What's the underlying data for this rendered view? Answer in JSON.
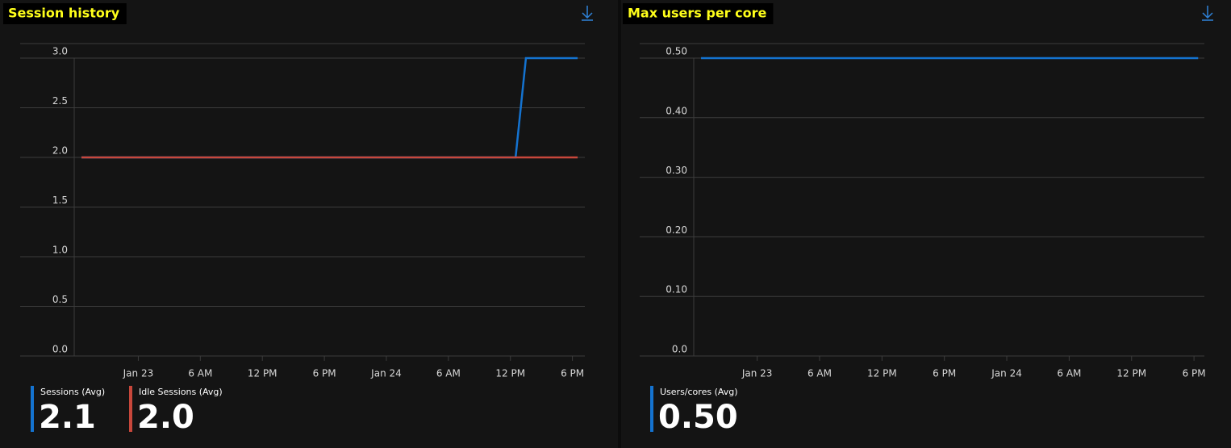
{
  "chart_data": [
    {
      "type": "line",
      "title": "Session history",
      "xlim": [
        -6.2,
        43.2
      ],
      "xticks": [
        {
          "value": 0,
          "label": "Jan 23"
        },
        {
          "value": 6,
          "label": "6 AM"
        },
        {
          "value": 12,
          "label": "12 PM"
        },
        {
          "value": 18,
          "label": "6 PM"
        },
        {
          "value": 24,
          "label": "Jan 24"
        },
        {
          "value": 30,
          "label": "6 AM"
        },
        {
          "value": 36,
          "label": "12 PM"
        },
        {
          "value": 42,
          "label": "6 PM"
        }
      ],
      "ylim": [
        0,
        3
      ],
      "yticks": [
        {
          "value": 0,
          "label": "0.0"
        },
        0.5,
        {
          "value": 1,
          "label": "1.0"
        },
        1.5,
        {
          "value": 2,
          "label": "2.0"
        },
        2.5,
        {
          "value": 3,
          "label": "3.0"
        }
      ],
      "grid": true,
      "series": [
        {
          "name": "Sessions (Avg)",
          "color": "#1473d0",
          "x": [
            -5.5,
            36.5,
            37.5,
            42.5
          ],
          "values": [
            2,
            2,
            3,
            3
          ],
          "summary": 2.1
        },
        {
          "name": "Idle Sessions (Avg)",
          "color": "#c8473b",
          "x": [
            -5.5,
            42.5
          ],
          "values": [
            2,
            2
          ],
          "summary": {
            "value": 2.0,
            "label": "2.0"
          }
        }
      ]
    },
    {
      "type": "line",
      "title": "Max users per core",
      "xlim": [
        -6.1,
        43.0
      ],
      "xticks": [
        {
          "value": 0,
          "label": "Jan 23"
        },
        {
          "value": 6,
          "label": "6 AM"
        },
        {
          "value": 12,
          "label": "12 PM"
        },
        {
          "value": 18,
          "label": "6 PM"
        },
        {
          "value": 24,
          "label": "Jan 24"
        },
        {
          "value": 30,
          "label": "6 AM"
        },
        {
          "value": 36,
          "label": "12 PM"
        },
        {
          "value": 42,
          "label": "6 PM"
        }
      ],
      "ylim": [
        0,
        0.5
      ],
      "yticks": [
        {
          "value": 0,
          "label": "0.0"
        },
        {
          "value": 0.1,
          "label": "0.10"
        },
        {
          "value": 0.2,
          "label": "0.20"
        },
        {
          "value": 0.3,
          "label": "0.30"
        },
        {
          "value": 0.4,
          "label": "0.40"
        },
        {
          "value": 0.5,
          "label": "0.50"
        }
      ],
      "grid": true,
      "series": [
        {
          "name": "Users/cores (Avg)",
          "color": "#1473d0",
          "x": [
            -5.4,
            42.4
          ],
          "values": [
            0.5,
            0.5
          ],
          "summary": {
            "value": 0.5,
            "label": "0.50"
          }
        }
      ]
    }
  ]
}
